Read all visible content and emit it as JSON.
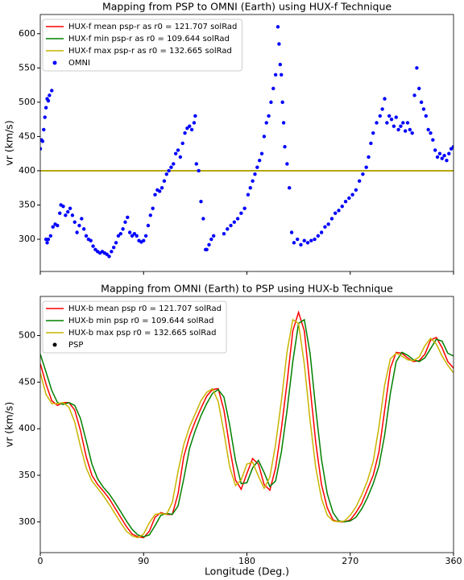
{
  "chart_data": [
    {
      "type": "line",
      "title": "Mapping from PSP to OMNI (Earth) using HUX-f Technique",
      "ylabel": "vr (km/s)",
      "xlim": [
        0,
        360
      ],
      "xticks": [
        0,
        90,
        180,
        270,
        360
      ],
      "xtick_labels": false,
      "ylim": [
        253,
        628
      ],
      "yticks": [
        300,
        350,
        400,
        450,
        500,
        550,
        600
      ],
      "legend": "upper left",
      "series": [
        {
          "name": "HUX-f mean psp-r as r0 = 121.707 solRad",
          "type": "line",
          "color": "#ff0000",
          "x": [
            0,
            360
          ],
          "values": [
            400,
            400
          ]
        },
        {
          "name": "HUX-f min psp-r as r0 = 109.644 solRad",
          "type": "line",
          "color": "#008000",
          "x": [
            0,
            360
          ],
          "values": [
            400,
            400
          ]
        },
        {
          "name": "HUX-f max psp-r as r0 = 132.665 solRad",
          "type": "line",
          "color": "#c8b400",
          "x": [
            0,
            360
          ],
          "values": [
            400,
            400
          ]
        },
        {
          "name": "OMNI",
          "type": "scatter",
          "color": "#0000ff",
          "x": [
            0,
            1,
            2,
            3,
            4,
            5,
            6,
            7,
            8,
            10,
            5,
            6,
            7,
            9,
            11,
            13,
            15,
            17,
            18,
            20,
            22,
            24,
            26,
            28,
            30,
            32,
            34,
            36,
            38,
            40,
            42,
            44,
            46,
            48,
            50,
            52,
            54,
            56,
            58,
            60,
            62,
            64,
            66,
            68,
            70,
            72,
            74,
            76,
            78,
            80,
            82,
            84,
            86,
            88,
            90,
            92,
            94,
            96,
            98,
            100,
            102,
            104,
            106,
            108,
            110,
            112,
            114,
            116,
            118,
            120,
            122,
            124,
            126,
            128,
            130,
            132,
            134,
            135,
            136,
            138,
            140,
            142,
            144,
            145,
            147,
            149,
            151,
            160,
            163,
            166,
            169,
            172,
            175,
            178,
            181,
            183,
            185,
            187,
            189,
            191,
            193,
            195,
            197,
            199,
            201,
            203,
            205,
            207,
            208,
            209,
            210,
            211,
            212,
            213,
            215,
            217,
            219,
            221,
            224,
            227,
            230,
            233,
            236,
            239,
            242,
            245,
            248,
            251,
            254,
            257,
            260,
            263,
            266,
            269,
            272,
            275,
            278,
            281,
            284,
            286,
            288,
            290,
            293,
            296,
            298,
            300,
            302,
            304,
            306,
            308,
            310,
            312,
            314,
            316,
            318,
            320,
            322,
            324,
            326,
            328,
            330,
            332,
            334,
            336,
            338,
            340,
            342,
            344,
            346,
            348,
            350,
            352,
            354,
            356,
            358,
            360
          ],
          "values": [
            432,
            445,
            443,
            460,
            478,
            492,
            505,
            502,
            510,
            517,
            300,
            295,
            300,
            305,
            318,
            322,
            320,
            338,
            350,
            348,
            335,
            340,
            345,
            335,
            325,
            310,
            320,
            330,
            315,
            305,
            300,
            298,
            290,
            285,
            282,
            280,
            282,
            280,
            278,
            275,
            282,
            288,
            295,
            305,
            308,
            315,
            325,
            332,
            310,
            305,
            308,
            305,
            298,
            296,
            298,
            305,
            320,
            335,
            345,
            365,
            372,
            370,
            375,
            385,
            395,
            400,
            405,
            410,
            425,
            430,
            420,
            440,
            455,
            462,
            465,
            460,
            470,
            480,
            410,
            400,
            355,
            330,
            285,
            285,
            292,
            300,
            305,
            308,
            315,
            320,
            325,
            330,
            338,
            345,
            365,
            375,
            385,
            395,
            405,
            415,
            425,
            450,
            470,
            480,
            500,
            520,
            540,
            610,
            585,
            555,
            540,
            500,
            470,
            435,
            410,
            375,
            310,
            295,
            300,
            292,
            298,
            295,
            298,
            300,
            305,
            310,
            318,
            322,
            330,
            338,
            342,
            348,
            355,
            360,
            365,
            372,
            385,
            395,
            405,
            420,
            440,
            455,
            470,
            480,
            490,
            505,
            470,
            480,
            475,
            465,
            478,
            460,
            465,
            470,
            458,
            470,
            460,
            455,
            510,
            550,
            520,
            500,
            490,
            480,
            460,
            455,
            445,
            430,
            420,
            425,
            418,
            422,
            415,
            425,
            432,
            435
          ]
        }
      ]
    },
    {
      "type": "line",
      "title": "Mapping from OMNI (Earth) to PSP using HUX-b Technique",
      "xlabel": "Longitude (Deg.)",
      "ylabel": "vr (km/s)",
      "xlim": [
        0,
        360
      ],
      "xticks": [
        0,
        90,
        180,
        270,
        360
      ],
      "xtick_labels": true,
      "ylim": [
        267,
        542
      ],
      "yticks": [
        300,
        350,
        400,
        450,
        500
      ],
      "legend": "upper left",
      "x": [
        0,
        5,
        10,
        15,
        20,
        25,
        30,
        35,
        40,
        45,
        50,
        55,
        60,
        65,
        70,
        75,
        80,
        85,
        90,
        95,
        100,
        105,
        110,
        115,
        120,
        125,
        130,
        135,
        140,
        145,
        150,
        155,
        160,
        165,
        170,
        175,
        180,
        185,
        190,
        195,
        200,
        205,
        210,
        215,
        220,
        225,
        230,
        235,
        240,
        245,
        250,
        255,
        260,
        265,
        270,
        275,
        280,
        285,
        290,
        295,
        300,
        305,
        310,
        315,
        320,
        325,
        330,
        335,
        340,
        345,
        350,
        355,
        360
      ],
      "series": [
        {
          "name": "HUX-b mean psp r0 = 121.707 solRad",
          "type": "line",
          "color": "#ff0000",
          "values": [
            470,
            448,
            430,
            425,
            428,
            428,
            420,
            398,
            370,
            350,
            340,
            333,
            325,
            315,
            305,
            295,
            287,
            284,
            283,
            290,
            305,
            310,
            308,
            308,
            330,
            370,
            392,
            408,
            422,
            435,
            442,
            443,
            420,
            380,
            345,
            335,
            352,
            368,
            362,
            340,
            334,
            358,
            400,
            450,
            505,
            525,
            505,
            445,
            385,
            340,
            315,
            302,
            300,
            300,
            302,
            310,
            320,
            335,
            350,
            375,
            420,
            465,
            482,
            481,
            476,
            472,
            473,
            480,
            495,
            498,
            487,
            472,
            465
          ]
        },
        {
          "name": "HUX-b min psp r0 = 109.644 solRad",
          "type": "line",
          "color": "#008000",
          "values": [
            480,
            461,
            441,
            428,
            426,
            428,
            425,
            411,
            387,
            362,
            346,
            337,
            330,
            321,
            311,
            301,
            292,
            286,
            284,
            286,
            296,
            307,
            309,
            308,
            317,
            346,
            379,
            398,
            414,
            427,
            438,
            442,
            434,
            404,
            366,
            341,
            342,
            358,
            366,
            353,
            338,
            344,
            375,
            420,
            472,
            513,
            517,
            481,
            421,
            367,
            330,
            310,
            301,
            300,
            301,
            305,
            314,
            326,
            341,
            360,
            393,
            438,
            472,
            482,
            479,
            474,
            472,
            476,
            486,
            496,
            494,
            481,
            478
          ]
        },
        {
          "name": "HUX-b max psp r0 = 132.665 solRad",
          "type": "line",
          "color": "#c8b400",
          "values": [
            460,
            437,
            427,
            427,
            428,
            423,
            407,
            381,
            358,
            344,
            336,
            328,
            319,
            309,
            299,
            290,
            285,
            283,
            287,
            299,
            308,
            309,
            308,
            321,
            354,
            383,
            402,
            416,
            430,
            439,
            443,
            429,
            396,
            359,
            339,
            345,
            362,
            364,
            349,
            336,
            348,
            383,
            430,
            483,
            517,
            513,
            469,
            409,
            358,
            325,
            307,
            301,
            300,
            301,
            307,
            316,
            329,
            344,
            365,
            402,
            447,
            475,
            481,
            478,
            474,
            473,
            477,
            489,
            497,
            491,
            478,
            468,
            460
          ]
        },
        {
          "name": "PSP",
          "type": "scatter",
          "color": "#000000",
          "values": []
        }
      ]
    }
  ]
}
